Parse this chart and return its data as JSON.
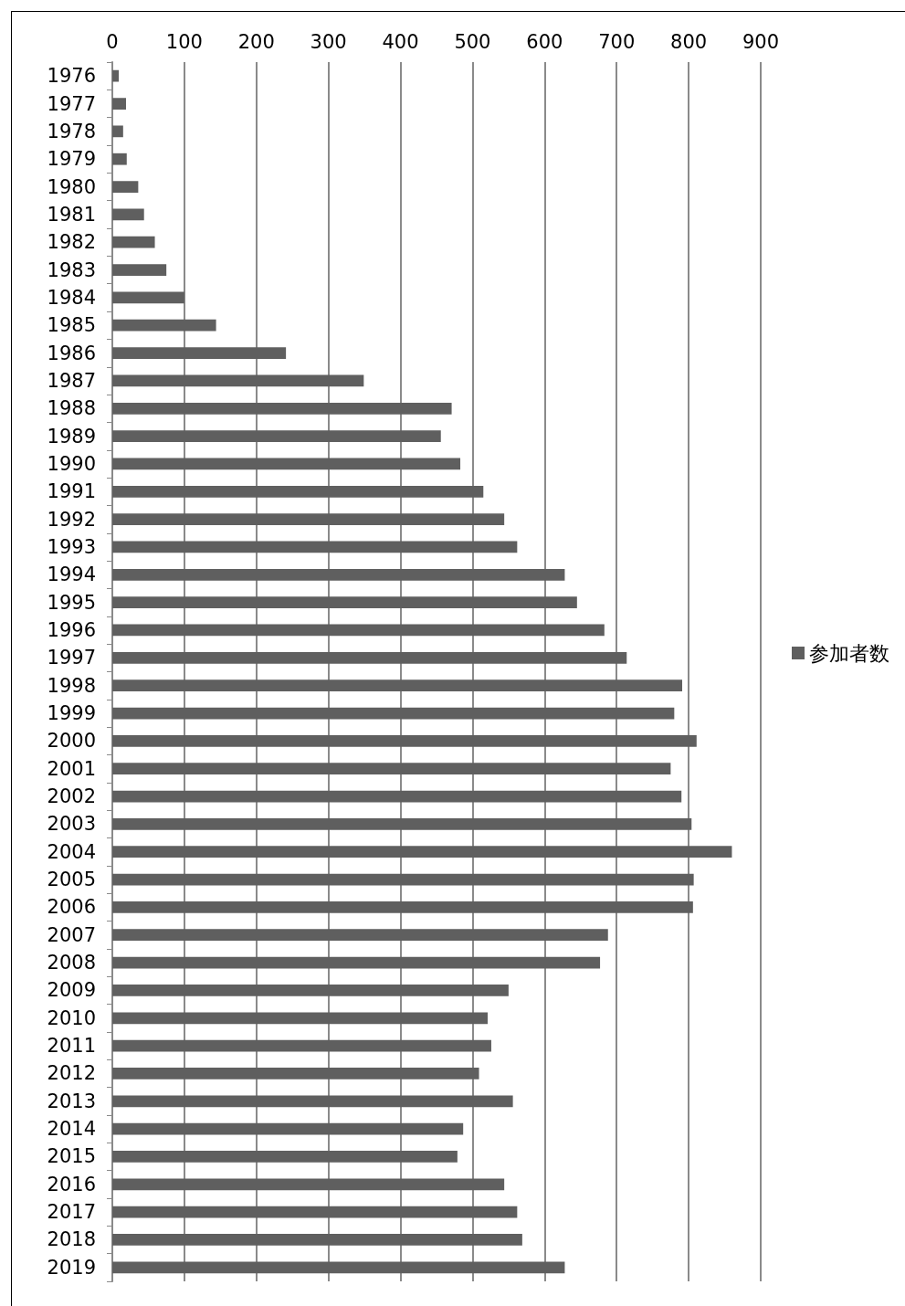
{
  "chart_data": {
    "type": "bar",
    "orientation": "horizontal",
    "categories": [
      "1976",
      "1977",
      "1978",
      "1979",
      "1980",
      "1981",
      "1982",
      "1983",
      "1984",
      "1985",
      "1986",
      "1987",
      "1988",
      "1989",
      "1990",
      "1991",
      "1992",
      "1993",
      "1994",
      "1995",
      "1996",
      "1997",
      "1998",
      "1999",
      "2000",
      "2001",
      "2002",
      "2003",
      "2004",
      "2005",
      "2006",
      "2007",
      "2008",
      "2009",
      "2010",
      "2011",
      "2012",
      "2013",
      "2014",
      "2015",
      "2016",
      "2017",
      "2018",
      "2019"
    ],
    "series": [
      {
        "name": "参加者数",
        "color": "#5f5f5f",
        "values": [
          9,
          19,
          15,
          20,
          36,
          44,
          59,
          75,
          100,
          144,
          241,
          349,
          471,
          456,
          483,
          515,
          544,
          562,
          628,
          645,
          683,
          714,
          791,
          780,
          811,
          775,
          790,
          804,
          860,
          807,
          806,
          688,
          677,
          550,
          521,
          526,
          509,
          556,
          487,
          479,
          544,
          562,
          569,
          628
        ]
      }
    ],
    "xlim": [
      0,
      900
    ],
    "xticks": [
      0,
      100,
      200,
      300,
      400,
      500,
      600,
      700,
      800,
      900
    ],
    "grid": "x",
    "legend": "right"
  }
}
